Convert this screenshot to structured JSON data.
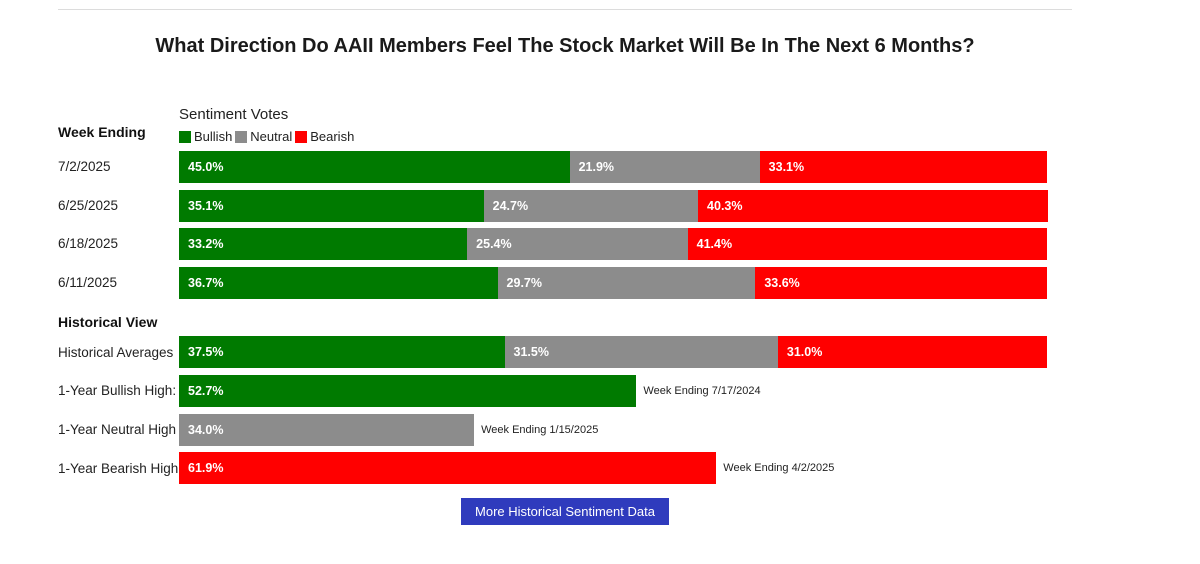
{
  "chart_data": {
    "type": "bar",
    "orientation": "horizontal-stacked",
    "title": "What Direction Do AAII Members Feel The Stock Market Will Be In The Next 6 Months?",
    "subtitle": "Sentiment Votes",
    "row_header": "Week Ending",
    "legend": [
      {
        "name": "Bullish",
        "color": "#007a00"
      },
      {
        "name": "Neutral",
        "color": "#8c8c8c"
      },
      {
        "name": "Bearish",
        "color": "#ff0000"
      }
    ],
    "weeks": [
      {
        "label": "7/2/2025",
        "bullish": 45.0,
        "neutral": 21.9,
        "bearish": 33.1
      },
      {
        "label": "6/25/2025",
        "bullish": 35.1,
        "neutral": 24.7,
        "bearish": 40.3
      },
      {
        "label": "6/18/2025",
        "bullish": 33.2,
        "neutral": 25.4,
        "bearish": 41.4
      },
      {
        "label": "6/11/2025",
        "bullish": 36.7,
        "neutral": 29.7,
        "bearish": 33.6
      }
    ],
    "historical_heading": "Historical View",
    "historical_averages": {
      "label": "Historical Averages",
      "bullish": 37.5,
      "neutral": 31.5,
      "bearish": 31.0
    },
    "highs": [
      {
        "label": "1-Year Bullish High:",
        "kind": "bullish",
        "value": 52.7,
        "note": "Week Ending 7/17/2024"
      },
      {
        "label": "1-Year Neutral High",
        "kind": "neutral",
        "value": 34.0,
        "note": "Week Ending 1/15/2025"
      },
      {
        "label": "1-Year Bearish High",
        "kind": "bearish",
        "value": 61.9,
        "note": "Week Ending 4/2/2025"
      }
    ]
  },
  "button": {
    "label": "More Historical Sentiment Data"
  }
}
